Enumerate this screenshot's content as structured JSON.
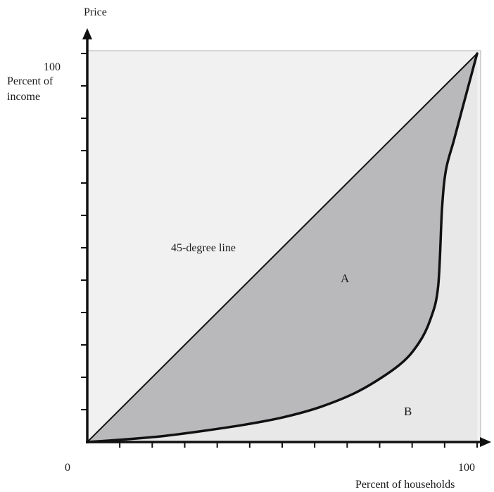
{
  "chart_data": {
    "type": "area",
    "y_axis_top_label": "Price",
    "ylabel": "Percent of income",
    "xlabel": "Percent of households",
    "x_ticks": [
      "0",
      "100"
    ],
    "y_ticks": [
      "100"
    ],
    "xlim": [
      0,
      100
    ],
    "ylim": [
      0,
      100
    ],
    "grid": false,
    "series": [
      {
        "name": "45-degree line",
        "x": [
          0,
          100
        ],
        "y": [
          0,
          100
        ]
      },
      {
        "x": [
          0,
          10,
          20,
          30,
          40,
          50,
          60,
          70,
          80,
          85,
          88,
          90,
          91,
          92,
          94,
          96,
          98,
          100
        ],
        "y": [
          0,
          0.7,
          1.6,
          2.9,
          4.4,
          6.3,
          9.1,
          13.3,
          19.8,
          25.4,
          31.5,
          40,
          60,
          70,
          77.5,
          85,
          92.5,
          100
        ]
      }
    ],
    "region_labels": [
      "A",
      "B"
    ],
    "colors": {
      "region_a": "#b9b9bc",
      "region_b": "#e8e8e9",
      "frame_fill": "#f1f1f1",
      "line": "#111111"
    }
  }
}
